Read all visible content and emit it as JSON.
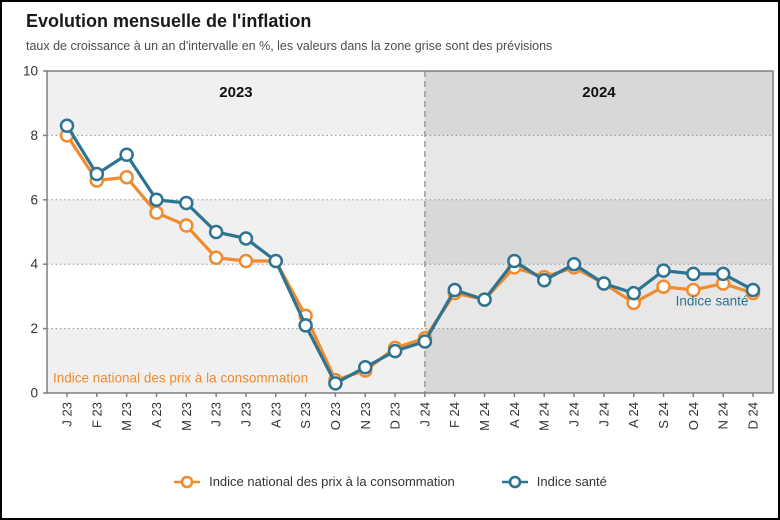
{
  "header": {
    "title": "Evolution mensuelle de l'inflation",
    "subtitle": "taux de croissance à un an d'intervalle en %, les valeurs dans la zone grise sont des prévisions"
  },
  "chart_data": {
    "type": "line",
    "x_labels": [
      "J 23",
      "F 23",
      "M 23",
      "A 23",
      "M 23",
      "J 23",
      "J 23",
      "A 23",
      "S 23",
      "O 23",
      "N 23",
      "D 23",
      "J 24",
      "F 24",
      "M 24",
      "A 24",
      "M 24",
      "J 24",
      "J 24",
      "A 24",
      "S 24",
      "O 24",
      "N 24",
      "D 24"
    ],
    "ylim": [
      0,
      10
    ],
    "yticks": [
      0,
      2,
      4,
      6,
      8,
      10
    ],
    "grid_yticks": [
      2,
      4,
      6,
      8
    ],
    "zones": [
      {
        "label": "2023",
        "from_index": 0,
        "to_index": 12,
        "bands": [
          "#f0f0f0",
          "#ffffff"
        ]
      },
      {
        "label": "2024",
        "from_index": 12,
        "to_index": 23,
        "bands": [
          "#d8d8d8",
          "#e7e7e7"
        ],
        "note": "zone grise = prévisions"
      }
    ],
    "series": [
      {
        "name": "Indice national des prix à la consommation",
        "color": "#f08b2e",
        "values": [
          8.0,
          6.6,
          6.7,
          5.6,
          5.2,
          4.2,
          4.1,
          4.1,
          2.4,
          0.4,
          0.7,
          1.4,
          1.7,
          3.1,
          2.9,
          3.9,
          3.6,
          3.9,
          3.4,
          2.8,
          3.3,
          3.2,
          3.4,
          3.1
        ]
      },
      {
        "name": "Indice santé",
        "color": "#2e7391",
        "values": [
          8.3,
          6.8,
          7.4,
          6.0,
          5.9,
          5.0,
          4.8,
          4.1,
          2.1,
          0.3,
          0.8,
          1.3,
          1.6,
          3.2,
          2.9,
          4.1,
          3.5,
          4.0,
          3.4,
          3.1,
          3.8,
          3.7,
          3.7,
          3.2
        ]
      }
    ],
    "annotations": [
      {
        "text": "Indice national des prix à la consommation",
        "color": "#f08b2e"
      },
      {
        "text": "Indice santé",
        "color": "#2e7391"
      }
    ],
    "legend_position": "bottom"
  },
  "colors": {
    "grid": "#8f8f8f",
    "frame": "#7f7f7f",
    "divider": "#999999",
    "axis_text": "#333333",
    "zone_label": "#111111",
    "title": "#1a1a1a",
    "subtitle": "#4d4d4d",
    "border": "#000000"
  }
}
